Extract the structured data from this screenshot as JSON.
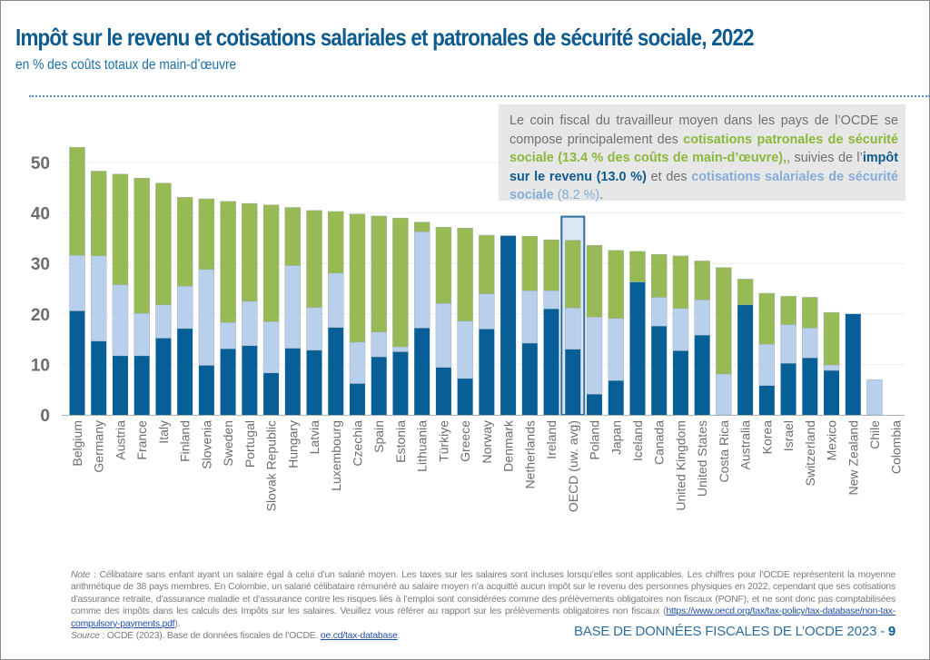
{
  "header": {
    "title": "Impôt sur le revenu et cotisations salariales et patronales de sécurité sociale, 2022",
    "subtitle": "en % des coûts totaux de main-d’œuvre"
  },
  "callout": {
    "part1": "Le coin fiscal du travailleur moyen dans les pays de l’OCDE se compose principalement des ",
    "employer": "cotisations patronales de sécurité sociale (13.4 % des coûts de main-d’œuvre)",
    "part2": ", suivies de l’",
    "income": "impôt sur le revenu (13.0 %)",
    "part3": " et des ",
    "employee": "cotisations salariales de sécurité sociale",
    "employee_value": " (8.2 %)",
    "end": "."
  },
  "colors": {
    "income_tax": "#085f97",
    "employee_ssc": "#b8d0eb",
    "employer_ssc": "#98ba54",
    "highlight_border": "#2f6d9c",
    "highlight_fill": "#dbe7f4"
  },
  "chart_data": {
    "type": "bar",
    "stacked": true,
    "title": "Impôt sur le revenu et cotisations salariales et patronales de sécurité sociale, 2022",
    "ylabel": "en % des coûts totaux de main-d’œuvre",
    "xlabel": "",
    "ylim": [
      0,
      55
    ],
    "yticks": [
      0,
      10,
      20,
      30,
      40,
      50
    ],
    "grid": true,
    "legend": "none",
    "highlight": "OECD (uw. avg)",
    "categories": [
      "Belgium",
      "Germany",
      "Austria",
      "France",
      "Italy",
      "Finland",
      "Slovenia",
      "Sweden",
      "Portugal",
      "Slovak Republic",
      "Hungary",
      "Latvia",
      "Luxembourg",
      "Czechia",
      "Spain",
      "Estonia",
      "Lithuania",
      "Türkiye",
      "Greece",
      "Norway",
      "Denmark",
      "Netherlands",
      "Ireland",
      "OECD (uw. avg)",
      "Poland",
      "Japan",
      "Iceland",
      "Canada",
      "United Kingdom",
      "United States",
      "Costa Rica",
      "Australia",
      "Korea",
      "Israel",
      "Switzerland",
      "Mexico",
      "New Zealand",
      "Chile",
      "Colombia"
    ],
    "series": [
      {
        "name": "Impôt sur le revenu",
        "color": "#085f97",
        "values": [
          20.6,
          14.6,
          11.7,
          11.7,
          15.2,
          17.1,
          9.8,
          13.1,
          13.7,
          8.3,
          13.2,
          12.8,
          17.3,
          6.2,
          11.5,
          12.5,
          17.2,
          9.4,
          7.2,
          17.0,
          35.5,
          14.2,
          21.0,
          13.0,
          4.1,
          6.8,
          26.3,
          17.6,
          12.7,
          15.8,
          0.0,
          21.8,
          5.8,
          10.2,
          11.3,
          8.8,
          20.0,
          0.0,
          0.0
        ]
      },
      {
        "name": "Cotisations salariales de sécurité sociale",
        "color": "#b8d0eb",
        "values": [
          11.0,
          16.9,
          14.1,
          8.4,
          6.6,
          8.4,
          19.0,
          5.2,
          8.8,
          10.2,
          16.4,
          8.5,
          10.8,
          8.2,
          4.9,
          1.0,
          19.1,
          12.7,
          11.4,
          7.0,
          0.0,
          10.4,
          3.6,
          8.2,
          15.3,
          12.3,
          0.0,
          5.7,
          8.4,
          7.0,
          8.1,
          0.0,
          8.2,
          7.7,
          5.9,
          1.1,
          0.0,
          7.0,
          0.0
        ]
      },
      {
        "name": "Cotisations patronales de sécurité sociale",
        "color": "#98ba54",
        "values": [
          21.4,
          16.8,
          21.9,
          26.8,
          24.1,
          17.6,
          14.0,
          24.0,
          19.4,
          23.1,
          11.5,
          19.2,
          12.2,
          25.4,
          23.0,
          25.5,
          1.9,
          15.1,
          18.4,
          11.6,
          0.0,
          10.8,
          10.1,
          13.4,
          14.2,
          13.5,
          6.1,
          8.5,
          10.4,
          7.7,
          21.1,
          5.1,
          10.1,
          5.6,
          6.1,
          10.4,
          0.0,
          0.0,
          0.0
        ]
      }
    ]
  },
  "footnote": {
    "note_label": "Note",
    "note_text": " : Célibataire sans enfant ayant un salaire égal à celui d’un salarié moyen. Les taxes sur les salaires sont incluses lorsqu’elles sont applicables. Les chiffres pour l’OCDE représentent la moyenne arithmétique de 38 pays membres. En Colombie, un salarié célibataire rémunéré au salaire moyen n’a acquitté aucun impôt sur le revenu des personnes physiques en 2022, cependant que ses cotisations d’assurance retraite, d’assurance maladie et d’assurance contre les risques liés à l’emploi sont considérées comme des prélèvements obligatoires non fiscaux (PONF), et ne sont donc pas comptabilisées comme des impôts dans les calculs des Impôts sur les salaires. Veuillez vous référer au rapport sur les prélèvements obligatoires non fiscaux (",
    "note_link": "https://www.oecd.org/tax/tax-policy/tax-database/non-tax-compulsory-payments.pdf",
    "note_end": ").",
    "source_label": "Source",
    "source_text": " : OCDE (2023). Base de données fiscales de l’OCDE. ",
    "source_link": "oe.cd/tax-database"
  },
  "footer": {
    "publication": "BASE DE DONNÉES FISCALES DE L’OCDE 2023 - ",
    "page": "9"
  }
}
